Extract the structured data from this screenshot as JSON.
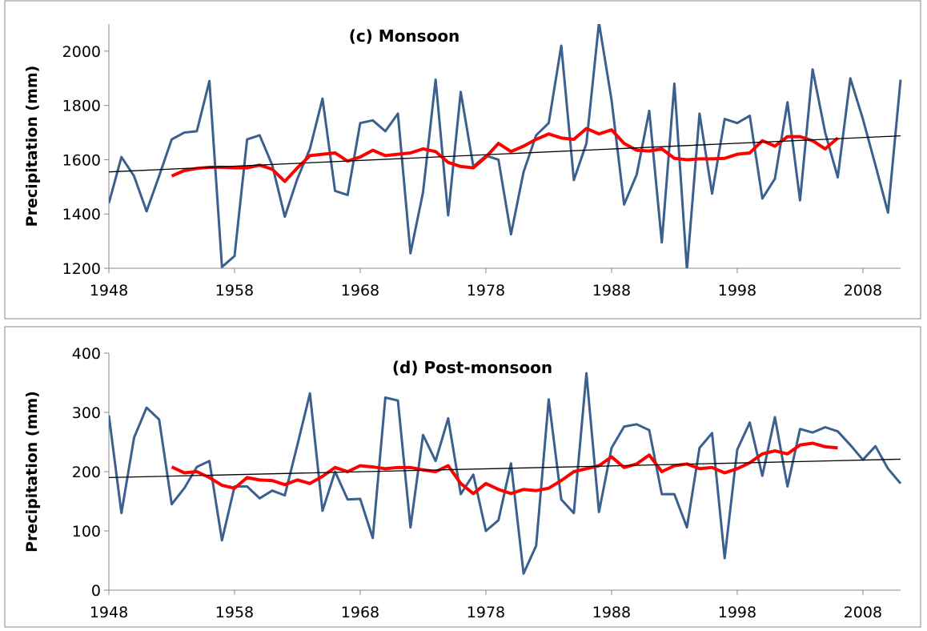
{
  "chart_data": [
    {
      "type": "line",
      "title": "(c) Monsoon",
      "y_label": "Precipitation (mm)",
      "x": [
        1948,
        1949,
        1950,
        1951,
        1952,
        1953,
        1954,
        1955,
        1956,
        1957,
        1958,
        1959,
        1960,
        1961,
        1962,
        1963,
        1964,
        1965,
        1966,
        1967,
        1968,
        1969,
        1970,
        1971,
        1972,
        1973,
        1974,
        1975,
        1976,
        1977,
        1978,
        1979,
        1980,
        1981,
        1982,
        1983,
        1984,
        1985,
        1986,
        1987,
        1988,
        1989,
        1990,
        1991,
        1992,
        1993,
        1994,
        1995,
        1996,
        1997,
        1998,
        1999,
        2000,
        2001,
        2002,
        2003,
        2004,
        2005,
        2006,
        2007,
        2008,
        2009,
        2010,
        2011
      ],
      "xlim": [
        1948,
        2011
      ],
      "xticks": [
        1948,
        1958,
        1968,
        1978,
        1988,
        1998,
        2008
      ],
      "ylim": [
        1200,
        2100
      ],
      "yticks": [
        1200,
        1400,
        1600,
        1800,
        2000
      ],
      "series": [
        {
          "color": "#3b5f8e",
          "width": 3,
          "values": [
            1440,
            1610,
            1540,
            1410,
            1540,
            1675,
            1700,
            1705,
            1890,
            1205,
            1245,
            1675,
            1690,
            1580,
            1390,
            1530,
            1640,
            1825,
            1485,
            1470,
            1735,
            1745,
            1705,
            1770,
            1255,
            1480,
            1895,
            1395,
            1850,
            1575,
            1615,
            1600,
            1325,
            1555,
            1690,
            1735,
            2020,
            1525,
            1660,
            2105,
            1820,
            1435,
            1545,
            1780,
            1295,
            1880,
            1195,
            1770,
            1475,
            1750,
            1735,
            1762,
            1457,
            1530,
            1812,
            1450,
            1933,
            1700,
            1535,
            1900,
            1750,
            1580,
            1405,
            1895
          ]
        },
        {
          "color": "#ff0000",
          "width": 4,
          "values": [
            null,
            null,
            null,
            null,
            null,
            1540,
            1560,
            1568,
            1572,
            1572,
            1570,
            1570,
            1580,
            1565,
            1520,
            1570,
            1615,
            1620,
            1625,
            1595,
            1610,
            1635,
            1615,
            1620,
            1625,
            1640,
            1630,
            1590,
            1575,
            1570,
            1610,
            1660,
            1630,
            1650,
            1675,
            1695,
            1680,
            1675,
            1715,
            1695,
            1710,
            1660,
            1635,
            1632,
            1640,
            1605,
            1600,
            1603,
            1603,
            1605,
            1620,
            1625,
            1670,
            1650,
            1685,
            1685,
            1670,
            1640,
            1680,
            null,
            null,
            null,
            null,
            null
          ]
        }
      ],
      "trend": {
        "color": "#000000",
        "x": [
          1948,
          2011
        ],
        "values": [
          1555,
          1688
        ]
      }
    },
    {
      "type": "line",
      "title": "(d) Post-monsoon",
      "y_label": "Precipitation (mm)",
      "x": [
        1948,
        1949,
        1950,
        1951,
        1952,
        1953,
        1954,
        1955,
        1956,
        1957,
        1958,
        1959,
        1960,
        1961,
        1962,
        1963,
        1964,
        1965,
        1966,
        1967,
        1968,
        1969,
        1970,
        1971,
        1972,
        1973,
        1974,
        1975,
        1976,
        1977,
        1978,
        1979,
        1980,
        1981,
        1982,
        1983,
        1984,
        1985,
        1986,
        1987,
        1988,
        1989,
        1990,
        1991,
        1992,
        1993,
        1994,
        1995,
        1996,
        1997,
        1998,
        1999,
        2000,
        2001,
        2002,
        2003,
        2004,
        2005,
        2006,
        2007,
        2008,
        2009,
        2010,
        2011
      ],
      "xlim": [
        1948,
        2011
      ],
      "xticks": [
        1948,
        1958,
        1968,
        1978,
        1988,
        1998,
        2008
      ],
      "ylim": [
        0,
        400
      ],
      "yticks": [
        0,
        100,
        200,
        300,
        400
      ],
      "series": [
        {
          "color": "#3b5f8e",
          "width": 3,
          "values": [
            295,
            130,
            257,
            308,
            288,
            145,
            172,
            208,
            218,
            84,
            175,
            175,
            155,
            168,
            160,
            245,
            332,
            134,
            200,
            153,
            154,
            88,
            325,
            320,
            106,
            262,
            218,
            290,
            162,
            195,
            100,
            118,
            214,
            28,
            75,
            322,
            153,
            130,
            366,
            132,
            240,
            276,
            280,
            270,
            162,
            162,
            106,
            240,
            265,
            54,
            237,
            283,
            193,
            292,
            175,
            272,
            266,
            275,
            268,
            245,
            220,
            243,
            205,
            180
          ]
        },
        {
          "color": "#ff0000",
          "width": 4,
          "values": [
            null,
            null,
            null,
            null,
            null,
            208,
            198,
            200,
            190,
            177,
            172,
            190,
            186,
            185,
            178,
            186,
            180,
            192,
            207,
            200,
            210,
            208,
            205,
            207,
            207,
            203,
            200,
            210,
            180,
            163,
            180,
            170,
            163,
            170,
            168,
            172,
            185,
            200,
            205,
            210,
            225,
            207,
            213,
            228,
            200,
            210,
            213,
            205,
            207,
            198,
            205,
            215,
            230,
            235,
            230,
            245,
            248,
            242,
            240,
            null,
            null,
            null,
            null,
            null
          ]
        }
      ],
      "trend": {
        "color": "#000000",
        "x": [
          1948,
          2011
        ],
        "values": [
          190,
          221
        ]
      }
    }
  ]
}
